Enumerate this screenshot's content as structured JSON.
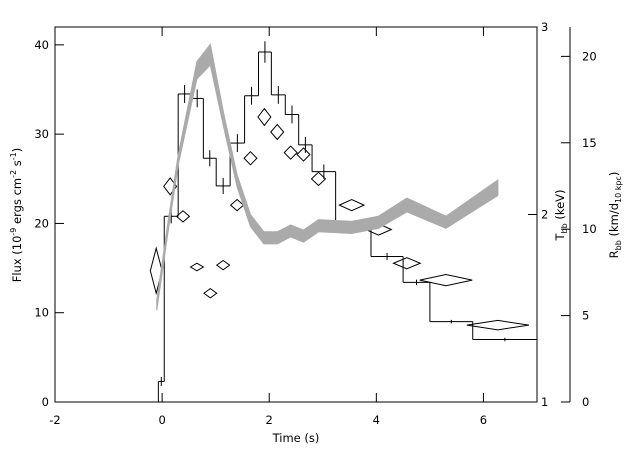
{
  "chart_data": {
    "type": "burst",
    "xlabel": "Time (s)",
    "ylabel": [
      "Flux (10",
      "-9",
      " ergs cm",
      "-2",
      " s",
      "-1",
      ")"
    ],
    "y2label": [
      "T",
      "bb",
      " (keV)"
    ],
    "y3label": [
      "R",
      "bb",
      " (km/d",
      "10 kpc",
      ")"
    ],
    "xlim": [
      -2,
      7
    ],
    "xticks": [
      -2,
      0,
      2,
      4,
      6
    ],
    "ylim": [
      0,
      42
    ],
    "yticks": [
      0,
      10,
      20,
      30,
      40
    ],
    "y2lim": [
      1,
      3
    ],
    "y2ticks": [
      1,
      2,
      3
    ],
    "y3lim": [
      0,
      21.7
    ],
    "y3ticks": [
      0,
      5,
      10,
      15,
      20
    ],
    "series": [
      {
        "type": "histogram",
        "axis": "y",
        "color": "#000000",
        "bins": [
          -0.07,
          0.04,
          0.3,
          0.54,
          0.77,
          1.01,
          1.27,
          1.54,
          1.8,
          2.04,
          2.3,
          2.55,
          2.8,
          3.24,
          3.9,
          4.5,
          5.0,
          5.8,
          7.0
        ],
        "values": [
          2.3,
          20.8,
          34.5,
          34.0,
          27.3,
          24.2,
          29.0,
          34.3,
          39.2,
          34.4,
          32.2,
          28.8,
          25.8,
          19.8,
          16.3,
          13.4,
          9.0,
          7.0
        ],
        "errors": [
          0.5,
          0.8,
          1.0,
          1.0,
          0.9,
          0.9,
          1.0,
          1.0,
          1.2,
          1.0,
          1.0,
          0.9,
          0.8,
          0.5,
          0.4,
          0.3,
          0.2,
          0.2
        ]
      },
      {
        "type": "scatter",
        "axis": "y2",
        "color": "#000000",
        "x": [
          -0.11,
          0.15,
          0.39,
          0.65,
          0.9,
          1.14,
          1.4,
          1.65,
          1.91,
          2.15,
          2.4,
          2.64,
          2.92,
          3.54,
          4.04,
          4.57,
          5.3,
          6.27
        ],
        "xerr": [
          0.11,
          0.12,
          0.12,
          0.12,
          0.12,
          0.12,
          0.12,
          0.12,
          0.12,
          0.12,
          0.12,
          0.12,
          0.13,
          0.23,
          0.24,
          0.25,
          0.49,
          0.58
        ],
        "values": [
          1.7,
          2.15,
          1.99,
          1.72,
          1.58,
          1.73,
          2.05,
          2.3,
          2.52,
          2.44,
          2.33,
          2.32,
          2.19,
          2.05,
          1.92,
          1.74,
          1.65,
          1.41
        ],
        "yerr": [
          0.12,
          0.045,
          0.03,
          0.02,
          0.025,
          0.025,
          0.03,
          0.035,
          0.045,
          0.04,
          0.035,
          0.035,
          0.035,
          0.03,
          0.03,
          0.03,
          0.03,
          0.025
        ]
      },
      {
        "type": "band",
        "axis": "y3",
        "color": "#aaaaaa",
        "x": [
          -0.1,
          0.1,
          0.3,
          0.65,
          0.9,
          1.15,
          1.4,
          1.65,
          1.9,
          2.15,
          2.4,
          2.64,
          2.92,
          3.54,
          4.04,
          4.57,
          5.3,
          6.27
        ],
        "values": [
          5.6,
          9.9,
          14.0,
          19.2,
          20.1,
          16.3,
          12.8,
          10.5,
          9.5,
          9.5,
          9.9,
          9.6,
          10.2,
          10.1,
          10.4,
          11.4,
          10.4,
          12.4
        ],
        "errors": [
          0.3,
          0.3,
          0.3,
          0.5,
          0.6,
          0.4,
          0.35,
          0.35,
          0.35,
          0.35,
          0.35,
          0.35,
          0.35,
          0.35,
          0.35,
          0.4,
          0.35,
          0.45
        ]
      }
    ]
  }
}
